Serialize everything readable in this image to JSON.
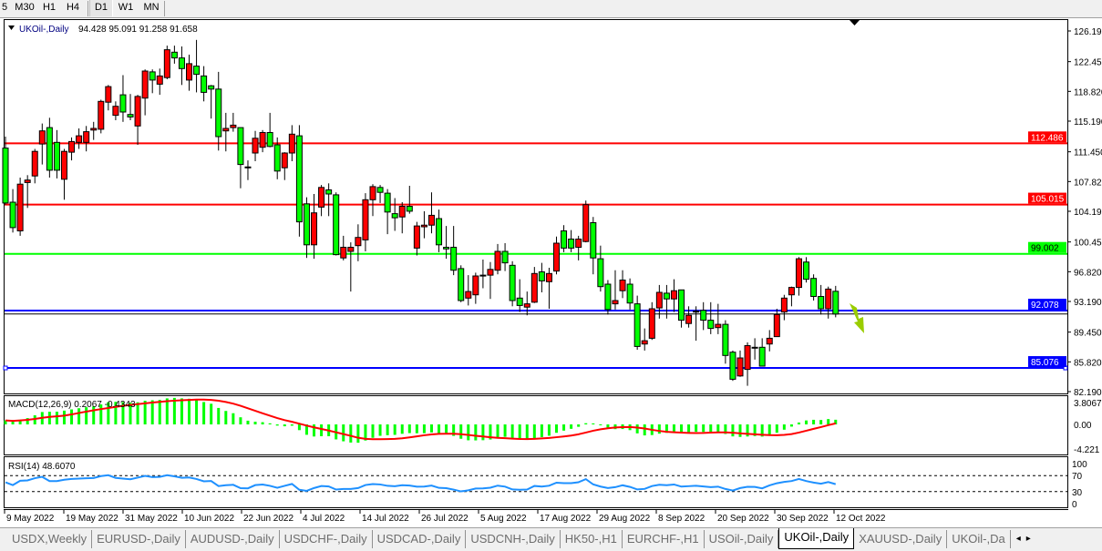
{
  "toolbar": {
    "timeframes": [
      "5",
      "M30",
      "H1",
      "H4",
      "D1",
      "W1",
      "MN"
    ],
    "active": "D1"
  },
  "chart": {
    "symbol_label": "UKOil-,Daily",
    "ohlc_label": "94.428 95.091 91.258 91.658",
    "colors": {
      "bull": "#ff0000",
      "bear": "#00ff00",
      "macd_hist": "#00ff00",
      "macd_signal": "#ff0000",
      "rsi": "#1e90ff",
      "arrow": "#9acd00"
    },
    "price_ticks": [
      "126.190",
      "122.450",
      "118.820",
      "115.190",
      "111.450",
      "107.820",
      "104.190",
      "100.450",
      "96.820",
      "93.190",
      "89.450",
      "85.820",
      "82.190"
    ],
    "price_tick_values": [
      126.19,
      122.45,
      118.82,
      115.19,
      111.45,
      107.82,
      104.19,
      100.45,
      96.82,
      93.19,
      89.45,
      85.82,
      82.19
    ],
    "bid": {
      "value": 91.658,
      "label": "91.658"
    },
    "hlines": [
      {
        "value": 112.486,
        "label": "112.486",
        "color": "#ff0000"
      },
      {
        "value": 105.015,
        "label": "105.015",
        "color": "#ff0000"
      },
      {
        "value": 99.002,
        "label": "99.002",
        "color": "#00ff00"
      },
      {
        "value": 92.078,
        "label": "92.078",
        "color": "#0000ff"
      },
      {
        "value": 85.076,
        "label": "85.076",
        "color": "#0000ff"
      }
    ],
    "candles_ohlc": [
      [
        111.9,
        113.3,
        105.0,
        105.2
      ],
      [
        105.3,
        106.9,
        101.6,
        102.2
      ],
      [
        101.8,
        108.3,
        101.2,
        107.5
      ],
      [
        107.7,
        108.6,
        104.6,
        108.0
      ],
      [
        108.5,
        111.8,
        107.6,
        111.5
      ],
      [
        112.4,
        114.9,
        109.9,
        114.0
      ],
      [
        114.4,
        115.6,
        108.3,
        109.2
      ],
      [
        112.6,
        114.1,
        108.2,
        109.2
      ],
      [
        108.1,
        111.8,
        105.6,
        111.5
      ],
      [
        111.4,
        113.2,
        110.4,
        112.7
      ],
      [
        112.6,
        114.3,
        111.8,
        113.4
      ],
      [
        112.6,
        114.6,
        111.5,
        113.9
      ],
      [
        114.1,
        115.1,
        112.9,
        114.3
      ],
      [
        114.2,
        117.8,
        113.7,
        117.6
      ],
      [
        117.5,
        119.6,
        116.5,
        119.4
      ],
      [
        115.9,
        117.6,
        115.3,
        117.0
      ],
      [
        118.4,
        120.8,
        115.1,
        116.3
      ],
      [
        116.0,
        118.5,
        115.3,
        115.7
      ],
      [
        114.6,
        118.4,
        112.3,
        118.2
      ],
      [
        118.0,
        121.5,
        115.9,
        121.3
      ],
      [
        121.2,
        121.5,
        118.6,
        120.2
      ],
      [
        119.7,
        121.6,
        118.4,
        120.7
      ],
      [
        120.5,
        124.4,
        120.3,
        123.9
      ],
      [
        123.6,
        124.4,
        122.2,
        122.9
      ],
      [
        122.9,
        124.3,
        119.6,
        121.6
      ],
      [
        120.2,
        123.3,
        118.9,
        122.2
      ],
      [
        121.9,
        125.1,
        118.7,
        120.9
      ],
      [
        120.7,
        121.9,
        117.6,
        118.7
      ],
      [
        119.5,
        119.6,
        115.5,
        119.1
      ],
      [
        119.1,
        121.2,
        111.6,
        113.3
      ],
      [
        114.0,
        116.2,
        111.5,
        114.3
      ],
      [
        114.4,
        116.2,
        113.9,
        114.7
      ],
      [
        114.4,
        114.4,
        107.0,
        109.9
      ],
      [
        109.5,
        110.4,
        108.0,
        109.6
      ],
      [
        111.3,
        114.0,
        110.3,
        113.1
      ],
      [
        112.0,
        114.1,
        111.4,
        113.8
      ],
      [
        113.8,
        116.2,
        112.0,
        112.1
      ],
      [
        112.3,
        113.2,
        108.1,
        109.1
      ],
      [
        109.5,
        111.4,
        108.0,
        111.3
      ],
      [
        111.3,
        114.7,
        110.3,
        113.6
      ],
      [
        113.4,
        114.7,
        101.1,
        102.9
      ],
      [
        105.1,
        105.9,
        98.5,
        100.1
      ],
      [
        100.1,
        106.3,
        98.4,
        104.0
      ],
      [
        104.7,
        107.4,
        103.6,
        107.1
      ],
      [
        106.8,
        107.6,
        103.6,
        106.3
      ],
      [
        106.2,
        106.5,
        98.8,
        98.9
      ],
      [
        98.5,
        101.2,
        98.2,
        99.8
      ],
      [
        99.3,
        100.4,
        94.4,
        99.8
      ],
      [
        100.0,
        102.6,
        98.1,
        101.0
      ],
      [
        100.7,
        106.4,
        99.3,
        105.6
      ],
      [
        105.6,
        107.5,
        103.6,
        107.2
      ],
      [
        107.1,
        107.4,
        105.2,
        106.5
      ],
      [
        106.4,
        106.9,
        101.4,
        104.1
      ],
      [
        103.9,
        105.8,
        101.8,
        103.4
      ],
      [
        103.5,
        105.3,
        101.5,
        104.8
      ],
      [
        104.8,
        107.3,
        103.9,
        104.2
      ],
      [
        99.7,
        102.9,
        98.8,
        102.4
      ],
      [
        102.3,
        104.2,
        100.9,
        102.5
      ],
      [
        102.5,
        106.5,
        101.5,
        103.7
      ],
      [
        103.3,
        104.4,
        99.2,
        100.1
      ],
      [
        99.8,
        102.4,
        98.4,
        99.6
      ],
      [
        99.8,
        102.4,
        96.4,
        97.0
      ],
      [
        97.2,
        97.6,
        93.1,
        93.3
      ],
      [
        93.6,
        96.4,
        92.7,
        94.4
      ],
      [
        94.0,
        96.7,
        92.9,
        96.3
      ],
      [
        96.3,
        98.3,
        94.8,
        96.4
      ],
      [
        96.4,
        98.0,
        93.5,
        97.1
      ],
      [
        97.0,
        100.2,
        96.5,
        99.3
      ],
      [
        99.3,
        100.3,
        96.9,
        97.9
      ],
      [
        97.6,
        98.1,
        92.6,
        93.3
      ],
      [
        93.6,
        95.9,
        91.9,
        92.7
      ],
      [
        92.5,
        94.4,
        91.5,
        92.9
      ],
      [
        93.1,
        97.4,
        93.0,
        96.6
      ],
      [
        96.8,
        97.9,
        94.3,
        95.7
      ],
      [
        95.6,
        97.3,
        92.3,
        96.6
      ],
      [
        96.9,
        101.1,
        96.5,
        100.3
      ],
      [
        101.8,
        102.5,
        99.2,
        99.7
      ],
      [
        100.8,
        101.9,
        99.2,
        99.7
      ],
      [
        99.8,
        101.2,
        98.2,
        100.8
      ],
      [
        100.5,
        105.5,
        100.4,
        105.0
      ],
      [
        102.8,
        103.5,
        96.5,
        98.5
      ],
      [
        98.4,
        100.0,
        94.4,
        95.0
      ],
      [
        95.3,
        95.8,
        91.6,
        92.2
      ],
      [
        92.9,
        97.0,
        92.2,
        93.3
      ],
      [
        94.5,
        97.0,
        93.6,
        95.8
      ],
      [
        95.3,
        96.0,
        92.2,
        93.0
      ],
      [
        92.9,
        93.9,
        87.3,
        87.7
      ],
      [
        88.0,
        89.9,
        87.2,
        88.4
      ],
      [
        88.7,
        93.1,
        88.5,
        92.3
      ],
      [
        92.4,
        95.2,
        91.1,
        94.3
      ],
      [
        94.2,
        95.2,
        91.1,
        93.5
      ],
      [
        93.5,
        95.9,
        91.9,
        94.5
      ],
      [
        94.6,
        94.6,
        90.0,
        90.9
      ],
      [
        90.5,
        92.6,
        90.0,
        91.5
      ],
      [
        91.9,
        92.6,
        88.4,
        92.0
      ],
      [
        92.1,
        93.1,
        89.7,
        90.9
      ],
      [
        90.9,
        93.1,
        89.2,
        89.9
      ],
      [
        90.0,
        92.9,
        89.2,
        90.4
      ],
      [
        90.4,
        90.9,
        85.6,
        86.6
      ],
      [
        87.0,
        87.2,
        83.5,
        83.7
      ],
      [
        84.1,
        87.2,
        84.0,
        86.3
      ],
      [
        84.9,
        88.2,
        82.9,
        87.8
      ],
      [
        87.5,
        88.7,
        86.1,
        87.6
      ],
      [
        87.6,
        88.7,
        85.3,
        85.3
      ],
      [
        88.0,
        89.7,
        87.1,
        88.7
      ],
      [
        88.9,
        92.3,
        88.9,
        91.6
      ],
      [
        91.9,
        94.0,
        90.9,
        93.6
      ],
      [
        94.0,
        95.0,
        92.6,
        94.9
      ],
      [
        94.9,
        98.6,
        93.9,
        98.4
      ],
      [
        98.0,
        98.6,
        95.5,
        95.9
      ],
      [
        96.0,
        96.5,
        93.3,
        93.8
      ],
      [
        93.8,
        95.2,
        91.6,
        92.3
      ],
      [
        92.3,
        95.0,
        91.1,
        94.7
      ],
      [
        94.428,
        95.091,
        91.258,
        91.658
      ]
    ],
    "date_labels": [
      "9 May 2022",
      "19 May 2022",
      "31 May 2022",
      "10 Jun 2022",
      "22 Jun 2022",
      "4 Jul 2022",
      "14 Jul 2022",
      "26 Jul 2022",
      "5 Aug 2022",
      "17 Aug 2022",
      "29 Aug 2022",
      "8 Sep 2022",
      "20 Sep 2022",
      "30 Sep 2022",
      "12 Oct 2022"
    ]
  },
  "macd": {
    "label": "MACD(12,26,9) 0.2067 -0.4343",
    "ticks": [
      "3.8067",
      "0.00",
      "-4.221"
    ],
    "range": [
      -4.221,
      3.8067
    ]
  },
  "rsi": {
    "label": "RSI(14) 48.6070",
    "ticks": [
      "100",
      "70",
      "30",
      "0"
    ],
    "levels": [
      70,
      30
    ]
  },
  "tabs": [
    {
      "label": "USDX,Weekly"
    },
    {
      "label": "EURUSD-,Daily"
    },
    {
      "label": "AUDUSD-,Daily"
    },
    {
      "label": "USDCHF-,Daily"
    },
    {
      "label": "USDCAD-,Daily"
    },
    {
      "label": "USDCNH-,Daily"
    },
    {
      "label": "HK50-,H1"
    },
    {
      "label": "EURCHF-,H1"
    },
    {
      "label": "USOil-,Daily"
    },
    {
      "label": "UKOil-,Daily",
      "active": true
    },
    {
      "label": "XAUUSD-,Daily"
    },
    {
      "label": "UKOil-,Da"
    }
  ]
}
